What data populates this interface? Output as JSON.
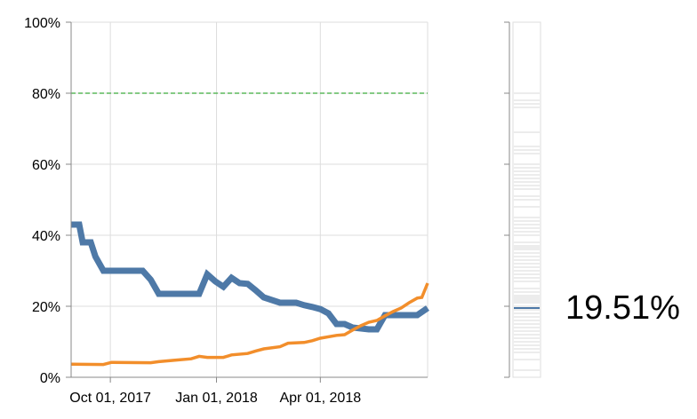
{
  "chart_data": {
    "type": "line",
    "y_ticks": [
      "0%",
      "20%",
      "40%",
      "60%",
      "80%",
      "100%"
    ],
    "y_tick_values": [
      0,
      20,
      40,
      60,
      80,
      100
    ],
    "ylim": [
      0,
      100
    ],
    "x_ticks": [
      {
        "date": "2017-10-01",
        "label": "Oct 01, 2017"
      },
      {
        "date": "2018-01-01",
        "label": "Jan 01, 2018"
      },
      {
        "date": "2018-04-01",
        "label": "Apr 01, 2018"
      }
    ],
    "xlim": [
      "2017-08-28",
      "2018-07-03"
    ],
    "grid": true,
    "threshold": {
      "value": 80,
      "color": "#5cb85c",
      "style": "dashed"
    },
    "series": [
      {
        "color": "#4e79a7",
        "points": [
          [
            "2017-08-28",
            43
          ],
          [
            "2017-09-04",
            43
          ],
          [
            "2017-09-07",
            38
          ],
          [
            "2017-09-14",
            38
          ],
          [
            "2017-09-18",
            34
          ],
          [
            "2017-09-25",
            30
          ],
          [
            "2017-10-09",
            30
          ],
          [
            "2017-10-29",
            30
          ],
          [
            "2017-11-05",
            27.5
          ],
          [
            "2017-11-12",
            23.5
          ],
          [
            "2017-12-17",
            23.5
          ],
          [
            "2017-12-24",
            29
          ],
          [
            "2017-12-31",
            27
          ],
          [
            "2018-01-07",
            25.5
          ],
          [
            "2018-01-14",
            28
          ],
          [
            "2018-01-21",
            26.5
          ],
          [
            "2018-01-28",
            26.3
          ],
          [
            "2018-02-04",
            24.5
          ],
          [
            "2018-02-11",
            22.5
          ],
          [
            "2018-02-25",
            21
          ],
          [
            "2018-03-11",
            21
          ],
          [
            "2018-03-18",
            20.3
          ],
          [
            "2018-03-25",
            19.8
          ],
          [
            "2018-04-01",
            19.2
          ],
          [
            "2018-04-08",
            18
          ],
          [
            "2018-04-15",
            15
          ],
          [
            "2018-04-22",
            15
          ],
          [
            "2018-04-29",
            14
          ],
          [
            "2018-05-13",
            13.5
          ],
          [
            "2018-05-20",
            13.5
          ],
          [
            "2018-05-27",
            17.5
          ],
          [
            "2018-06-24",
            17.5
          ],
          [
            "2018-07-03",
            19.51
          ]
        ]
      },
      {
        "color": "#f28e2b",
        "points": [
          [
            "2017-08-28",
            3.7
          ],
          [
            "2017-09-25",
            3.6
          ],
          [
            "2017-10-02",
            4.2
          ],
          [
            "2017-11-05",
            4.1
          ],
          [
            "2017-11-12",
            4.4
          ],
          [
            "2017-11-26",
            4.8
          ],
          [
            "2017-12-10",
            5.2
          ],
          [
            "2017-12-17",
            5.9
          ],
          [
            "2017-12-24",
            5.6
          ],
          [
            "2018-01-07",
            5.6
          ],
          [
            "2018-01-14",
            6.3
          ],
          [
            "2018-01-28",
            6.7
          ],
          [
            "2018-02-04",
            7.4
          ],
          [
            "2018-02-11",
            8.0
          ],
          [
            "2018-02-25",
            8.6
          ],
          [
            "2018-03-04",
            9.6
          ],
          [
            "2018-03-18",
            9.8
          ],
          [
            "2018-03-25",
            10.3
          ],
          [
            "2018-04-01",
            11.0
          ],
          [
            "2018-04-15",
            11.8
          ],
          [
            "2018-04-22",
            12.0
          ],
          [
            "2018-04-29",
            13.3
          ],
          [
            "2018-05-06",
            14.5
          ],
          [
            "2018-05-13",
            15.5
          ],
          [
            "2018-05-20",
            16.0
          ],
          [
            "2018-05-27",
            17.3
          ],
          [
            "2018-06-03",
            18.5
          ],
          [
            "2018-06-10",
            19.5
          ],
          [
            "2018-06-17",
            21.0
          ],
          [
            "2018-06-24",
            22.3
          ],
          [
            "2018-06-28",
            22.5
          ],
          [
            "2018-07-03",
            26.5
          ]
        ]
      }
    ]
  },
  "distribution": {
    "current_value": 19.51,
    "current_label": "19.51%",
    "marker_color": "#4e79a7",
    "values": [
      2,
      5,
      7,
      8,
      9,
      10,
      11,
      12,
      13,
      14,
      15,
      16,
      17,
      18,
      19,
      20,
      21,
      21.5,
      22,
      22.5,
      23,
      24,
      25,
      27,
      28,
      29,
      30,
      31,
      32,
      33,
      34,
      35,
      36,
      36.5,
      37,
      38,
      40,
      41,
      42,
      43,
      44,
      45,
      48,
      50,
      51,
      53,
      54,
      55,
      56,
      57,
      58,
      59,
      60,
      63,
      64,
      65,
      69,
      76,
      77,
      78,
      80
    ]
  }
}
